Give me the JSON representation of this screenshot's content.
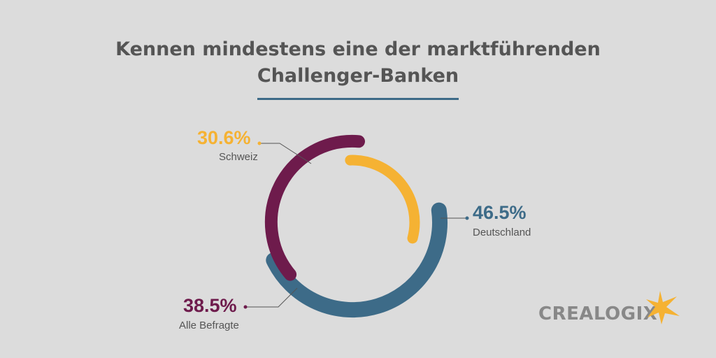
{
  "title": {
    "line1": "Kennen mindestens eine der marktführenden",
    "line2": "Challenger-Banken"
  },
  "colors": {
    "background": "#dcdcdc",
    "title": "#555555",
    "rule": "#3d6b88",
    "deutschland": "#3d6b88",
    "schweiz": "#f5b233",
    "alle": "#6e1b4c",
    "leader": "#555555",
    "logo": "#888888",
    "logo_star": "#f5b233"
  },
  "chart_data": {
    "type": "radial-bar",
    "unit": "%",
    "series": [
      {
        "name": "Deutschland",
        "value": 46.5,
        "value_label": "46.5%",
        "color": "#3d6b88"
      },
      {
        "name": "Alle Befragte",
        "value": 38.5,
        "value_label": "38.5%",
        "color": "#6e1b4c"
      },
      {
        "name": "Schweiz",
        "value": 30.6,
        "value_label": "30.6%",
        "color": "#f5b233"
      }
    ]
  },
  "logo": {
    "text": "CREALOGIX",
    "icon": "star-icon"
  }
}
